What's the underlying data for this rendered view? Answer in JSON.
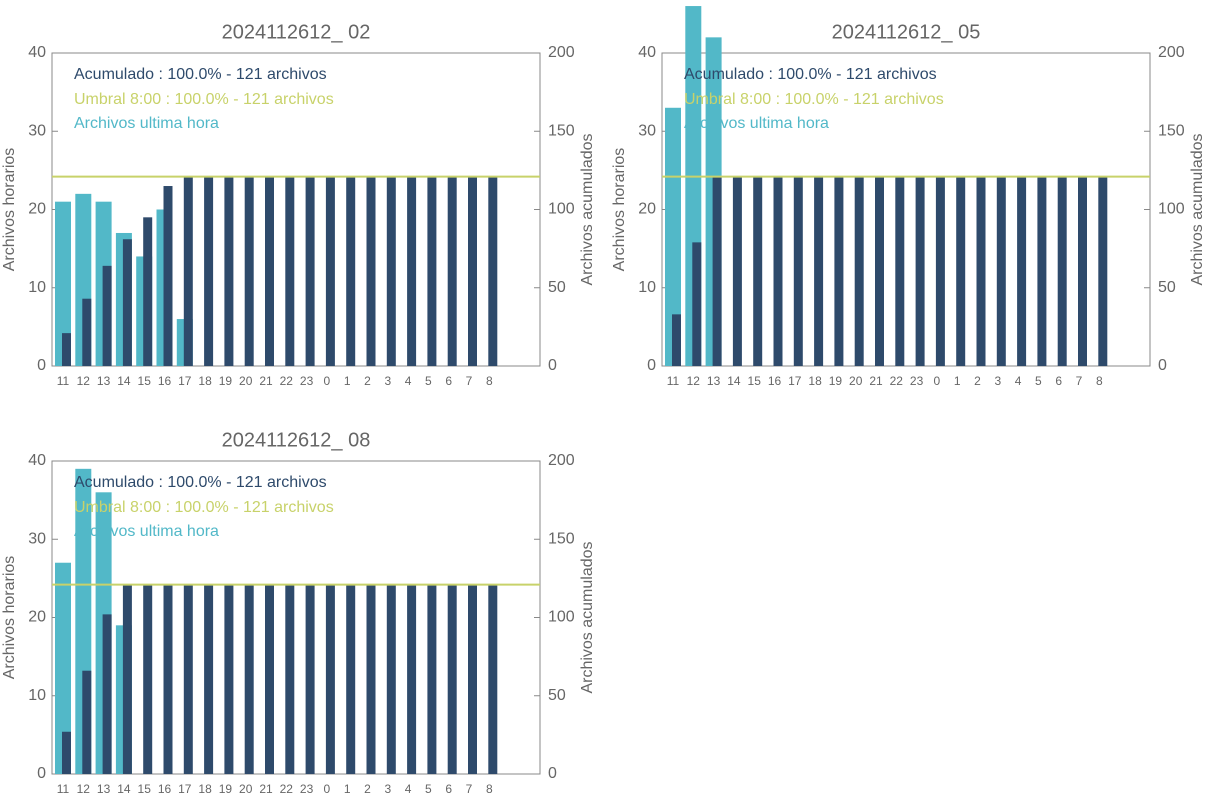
{
  "chart_data": [
    {
      "type": "bar",
      "title": "2024112612_ 02",
      "ylabel": "Archivos horarios",
      "y2label": "Archivos acumulados",
      "categories": [
        "11",
        "12",
        "13",
        "14",
        "15",
        "16",
        "17",
        "18",
        "19",
        "20",
        "21",
        "22",
        "23",
        "0",
        "1",
        "2",
        "3",
        "4",
        "5",
        "6",
        "7",
        "8"
      ],
      "ylim": [
        0,
        40
      ],
      "yticks": [
        0,
        10,
        20,
        30,
        40
      ],
      "y2lim": [
        0,
        200
      ],
      "y2ticks": [
        0,
        50,
        100,
        150,
        200
      ],
      "series": [
        {
          "name": "Archivos ultima hora",
          "color": "#52b8c8",
          "values": [
            21,
            22,
            21,
            17,
            14,
            20,
            6,
            null,
            null,
            null,
            null,
            null,
            null,
            null,
            null,
            null,
            null,
            null,
            null,
            null,
            null,
            null
          ]
        },
        {
          "name": "Acumulado : 100.0% - 121 archivos",
          "color": "#2e4a6b",
          "axis": "y2",
          "values": [
            21,
            43,
            64,
            81,
            95,
            115,
            121,
            121,
            121,
            121,
            121,
            121,
            121,
            121,
            121,
            121,
            121,
            121,
            121,
            121,
            121,
            121
          ]
        }
      ],
      "threshold": {
        "label": "Umbral 8:00 : 100.0% - 121 archivos",
        "value": 121,
        "color": "#c8d26a",
        "axis": "y2"
      }
    },
    {
      "type": "bar",
      "title": "2024112612_ 05",
      "ylabel": "Archivos horarios",
      "y2label": "Archivos acumulados",
      "categories": [
        "11",
        "12",
        "13",
        "14",
        "15",
        "16",
        "17",
        "18",
        "19",
        "20",
        "21",
        "22",
        "23",
        "0",
        "1",
        "2",
        "3",
        "4",
        "5",
        "6",
        "7",
        "8"
      ],
      "ylim": [
        0,
        40
      ],
      "yticks": [
        0,
        10,
        20,
        30,
        40
      ],
      "y2lim": [
        0,
        200
      ],
      "y2ticks": [
        0,
        50,
        100,
        150,
        200
      ],
      "series": [
        {
          "name": "Archivos ultima hora",
          "color": "#52b8c8",
          "values": [
            33,
            46,
            42,
            null,
            null,
            null,
            null,
            null,
            null,
            null,
            null,
            null,
            null,
            null,
            null,
            null,
            null,
            null,
            null,
            null,
            null,
            null
          ]
        },
        {
          "name": "Acumulado : 100.0% - 121 archivos",
          "color": "#2e4a6b",
          "axis": "y2",
          "values": [
            33,
            79,
            121,
            121,
            121,
            121,
            121,
            121,
            121,
            121,
            121,
            121,
            121,
            121,
            121,
            121,
            121,
            121,
            121,
            121,
            121,
            121
          ]
        }
      ],
      "threshold": {
        "label": "Umbral 8:00 : 100.0% - 121 archivos",
        "value": 121,
        "color": "#c8d26a",
        "axis": "y2"
      }
    },
    {
      "type": "bar",
      "title": "2024112612_ 08",
      "ylabel": "Archivos horarios",
      "y2label": "Archivos acumulados",
      "categories": [
        "11",
        "12",
        "13",
        "14",
        "15",
        "16",
        "17",
        "18",
        "19",
        "20",
        "21",
        "22",
        "23",
        "0",
        "1",
        "2",
        "3",
        "4",
        "5",
        "6",
        "7",
        "8"
      ],
      "ylim": [
        0,
        40
      ],
      "yticks": [
        0,
        10,
        20,
        30,
        40
      ],
      "y2lim": [
        0,
        200
      ],
      "y2ticks": [
        0,
        50,
        100,
        150,
        200
      ],
      "series": [
        {
          "name": "Archivos ultima hora",
          "color": "#52b8c8",
          "values": [
            27,
            39,
            36,
            19,
            null,
            null,
            null,
            null,
            null,
            null,
            null,
            null,
            null,
            null,
            null,
            null,
            null,
            null,
            null,
            null,
            null,
            null
          ]
        },
        {
          "name": "Acumulado : 100.0% - 121 archivos",
          "color": "#2e4a6b",
          "axis": "y2",
          "values": [
            27,
            66,
            102,
            121,
            121,
            121,
            121,
            121,
            121,
            121,
            121,
            121,
            121,
            121,
            121,
            121,
            121,
            121,
            121,
            121,
            121,
            121
          ]
        }
      ],
      "threshold": {
        "label": "Umbral 8:00 : 100.0% - 121 archivos",
        "value": 121,
        "color": "#c8d26a",
        "axis": "y2"
      }
    }
  ]
}
